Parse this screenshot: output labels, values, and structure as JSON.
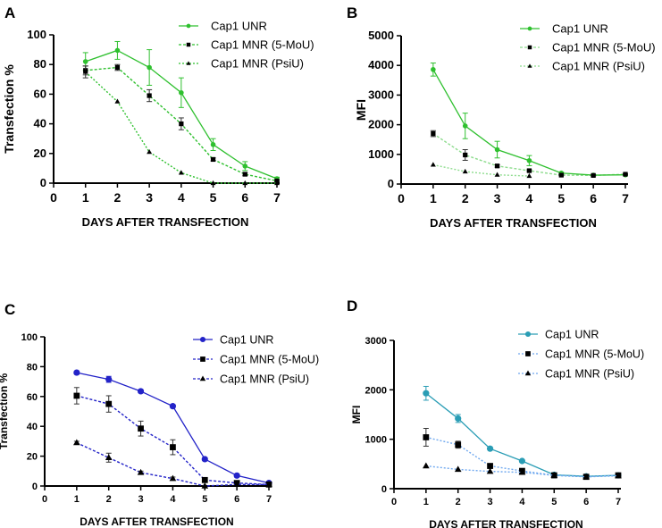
{
  "chart_data": [
    {
      "panel": "A",
      "type": "line",
      "color": "#2fc02f",
      "xlabel": "DAYS AFTER TRANSFECTION",
      "ylabel": "Transfection %",
      "xlim": [
        0,
        7
      ],
      "ylim": [
        0,
        100
      ],
      "xticks": [
        0,
        1,
        2,
        3,
        4,
        5,
        6,
        7
      ],
      "yticks": [
        0,
        20,
        40,
        60,
        80,
        100
      ],
      "legend": "top-right",
      "series": [
        {
          "name": "Cap1 UNR",
          "marker": "circle",
          "dash": "solid",
          "x": [
            1,
            2,
            3,
            4,
            5,
            6,
            7
          ],
          "y": [
            82,
            89.5,
            78,
            61,
            26,
            11.5,
            3
          ],
          "err": [
            6,
            6,
            12,
            10,
            4,
            3,
            1
          ]
        },
        {
          "name": "Cap1 MNR (5-MoU)",
          "marker": "square",
          "dash": "dashed",
          "x": [
            1,
            2,
            3,
            4,
            5,
            6,
            7
          ],
          "y": [
            76,
            78,
            59,
            40,
            16,
            6,
            1.5
          ],
          "err": [
            3,
            2,
            4,
            4,
            1,
            1,
            0.5
          ]
        },
        {
          "name": "Cap1 MNR (PsiU)",
          "marker": "triangle",
          "dash": "dotted",
          "x": [
            1,
            2,
            3,
            4,
            5,
            6,
            7
          ],
          "y": [
            75,
            55,
            21,
            7,
            0,
            0,
            0
          ],
          "err": [
            4,
            0,
            0,
            0,
            0,
            0,
            0
          ]
        }
      ]
    },
    {
      "panel": "B",
      "type": "line",
      "color": "#2fc02f",
      "xlabel": "DAYS AFTER TRANSFECTION",
      "ylabel": "MFI",
      "xlim": [
        0,
        7
      ],
      "ylim": [
        0,
        5000
      ],
      "xticks": [
        0,
        1,
        2,
        3,
        4,
        5,
        6,
        7
      ],
      "yticks": [
        0,
        1000,
        2000,
        3000,
        4000,
        5000
      ],
      "legend": "top-right",
      "series": [
        {
          "name": "Cap1 UNR",
          "marker": "circle",
          "dash": "solid",
          "x": [
            1,
            2,
            3,
            4,
            5,
            6,
            7
          ],
          "y": [
            3860,
            1960,
            1160,
            790,
            370,
            300,
            310
          ],
          "err": [
            220,
            430,
            280,
            170,
            30,
            20,
            20
          ]
        },
        {
          "name": "Cap1 MNR (5-MoU)",
          "marker": "square",
          "dash": "dashed",
          "x": [
            1,
            2,
            3,
            4,
            5,
            6,
            7
          ],
          "y": [
            1700,
            980,
            610,
            450,
            300,
            290,
            330
          ],
          "err": [
            100,
            180,
            40,
            30,
            20,
            20,
            20
          ]
        },
        {
          "name": "Cap1 MNR (PsiU)",
          "marker": "triangle",
          "dash": "dotted",
          "x": [
            1,
            2,
            3,
            4
          ],
          "y": [
            650,
            420,
            310,
            270
          ],
          "err": [
            0,
            0,
            0,
            0
          ]
        }
      ]
    },
    {
      "panel": "C",
      "type": "line",
      "color": "#2323c8",
      "xlabel": "DAYS AFTER TRANSFECTION",
      "ylabel": "Transfection %",
      "xlim": [
        0,
        7
      ],
      "ylim": [
        0,
        100
      ],
      "xticks": [
        0,
        1,
        2,
        3,
        4,
        5,
        6,
        7
      ],
      "yticks": [
        0,
        20,
        40,
        60,
        80,
        100
      ],
      "legend": "top-right",
      "series": [
        {
          "name": "Cap1 UNR",
          "marker": "circle",
          "dash": "solid",
          "x": [
            1,
            2,
            3,
            4,
            5,
            6,
            7
          ],
          "y": [
            76,
            71.5,
            63.5,
            53.5,
            18,
            7,
            2
          ],
          "err": [
            1,
            2,
            1,
            1,
            1,
            1,
            0.5
          ]
        },
        {
          "name": "Cap1 MNR (5-MoU)",
          "marker": "square",
          "dash": "dashed",
          "x": [
            1,
            2,
            3,
            4,
            5,
            6,
            7
          ],
          "y": [
            60.5,
            55,
            38.5,
            26,
            4,
            2,
            1
          ],
          "err": [
            5.5,
            5.5,
            5,
            5,
            1,
            0.5,
            0.5
          ]
        },
        {
          "name": "Cap1 MNR (PsiU)",
          "marker": "triangle",
          "dash": "dashed",
          "x": [
            1,
            2,
            3,
            4,
            5,
            6,
            7
          ],
          "y": [
            29,
            19,
            9,
            5,
            0,
            1,
            1
          ],
          "err": [
            1,
            3,
            1,
            1,
            0,
            0,
            0
          ]
        }
      ]
    },
    {
      "panel": "D",
      "type": "line",
      "color": "#2a9db5",
      "color2": "#6fa8ef",
      "xlabel": "DAYS AFTER TRANSFECTION",
      "ylabel": "MFI",
      "xlim": [
        0,
        7
      ],
      "ylim": [
        0,
        3000
      ],
      "xticks": [
        0,
        1,
        2,
        3,
        4,
        5,
        6,
        7
      ],
      "yticks": [
        0,
        1000,
        2000,
        3000
      ],
      "legend": "top-right",
      "series": [
        {
          "name": "Cap1 UNR",
          "marker": "circle",
          "dash": "solid",
          "x": [
            1,
            2,
            3,
            4,
            5,
            6,
            7
          ],
          "y": [
            1930,
            1420,
            810,
            560,
            280,
            250,
            270
          ],
          "err": [
            140,
            80,
            20,
            20,
            20,
            20,
            20
          ]
        },
        {
          "name": "Cap1 MNR (5-MoU)",
          "marker": "square",
          "dash": "dotted",
          "x": [
            1,
            2,
            3,
            4,
            5,
            6,
            7
          ],
          "y": [
            1040,
            890,
            460,
            360,
            270,
            240,
            270
          ],
          "err": [
            180,
            70,
            30,
            20,
            20,
            20,
            20
          ]
        },
        {
          "name": "Cap1 MNR (PsiU)",
          "marker": "triangle",
          "dash": "dotted",
          "x": [
            1,
            2,
            3,
            4,
            5,
            6,
            7
          ],
          "y": [
            460,
            390,
            350,
            330,
            270,
            240,
            260
          ],
          "err": [
            0,
            0,
            0,
            0,
            0,
            0,
            0
          ]
        }
      ]
    }
  ]
}
